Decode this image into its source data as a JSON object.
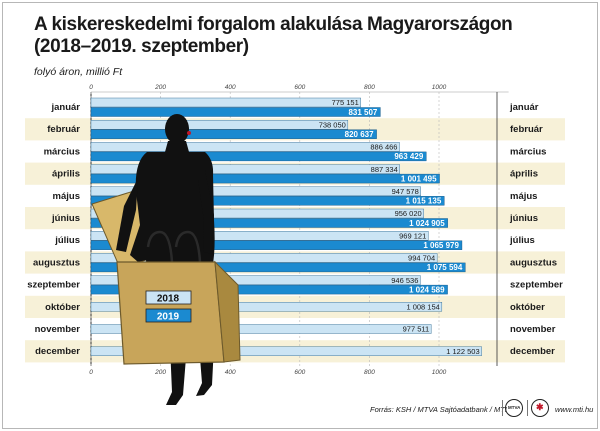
{
  "title": "A kiskereskedelmi forgalom alakulása Magyarországon (2018–2019. szeptember)",
  "subtitle": "folyó áron, millió Ft",
  "footer": {
    "source": "Forrás: KSH / MTVA Sajtóadatbank / MTI",
    "url": "www.mti.hu"
  },
  "colors": {
    "bar_2018": "#cbe4f4",
    "bar_2019": "#1b8ad0",
    "stripe": "#f7f1d8",
    "silhouette": "#111111",
    "bag": "#c8a55a"
  },
  "chart_data": {
    "type": "bar",
    "orientation": "horizontal",
    "categories": [
      "január",
      "február",
      "március",
      "április",
      "május",
      "június",
      "július",
      "augusztus",
      "szeptember",
      "október",
      "november",
      "december"
    ],
    "series": [
      {
        "name": "2018",
        "values": [
          775151,
          738050,
          886466,
          887334,
          947578,
          956020,
          969121,
          994704,
          946536,
          1008154,
          977511,
          1122503
        ],
        "labels": [
          "775 151",
          "738 050",
          "886 466",
          "887 334",
          "947 578",
          "956 020",
          "969 121",
          "994 704",
          "946 536",
          "1 008 154",
          "977 511",
          "1 122 503"
        ]
      },
      {
        "name": "2019",
        "values": [
          831507,
          820637,
          963429,
          1001495,
          1015135,
          1024905,
          1065979,
          1075594,
          1024589,
          null,
          null,
          null
        ],
        "labels": [
          "831 507",
          "820 637",
          "963 429",
          "1 001 495",
          "1 015 135",
          "1 024 905",
          "1 065 979",
          "1 075 594",
          "1 024 589",
          "",
          "",
          ""
        ]
      }
    ],
    "axis": {
      "ticks": [
        0,
        200,
        400,
        600,
        800,
        1000
      ],
      "tick_labels": [
        "0",
        "200",
        "400",
        "600",
        "800",
        "1000"
      ],
      "xlim": [
        0,
        1200000
      ]
    },
    "legend": [
      "2018",
      "2019"
    ]
  }
}
